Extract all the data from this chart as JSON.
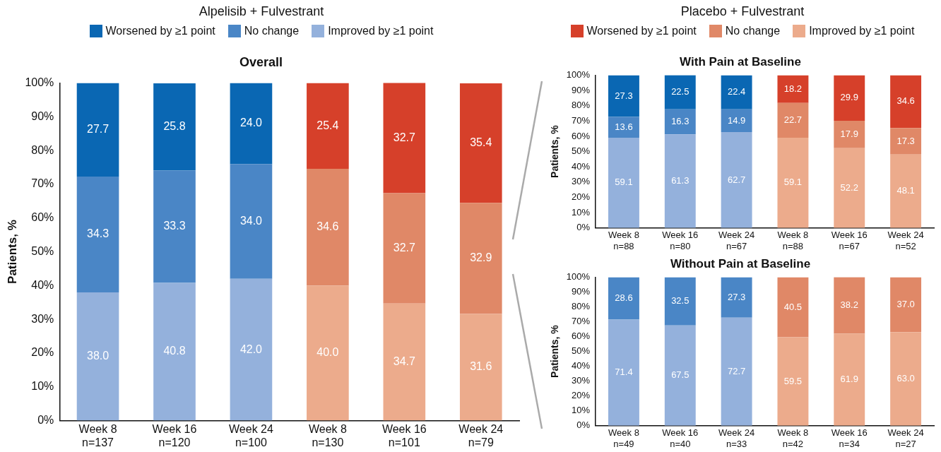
{
  "chart_data": [
    {
      "type": "bar",
      "title": "Overall",
      "ylabel": "Patients, %",
      "stacked": true,
      "legend": "top",
      "grid": false,
      "annotations": [
        "Alpelisib + Fulvestrant",
        "Placebo + Fulvestrant"
      ],
      "categories": [
        "Week 8\nn=137",
        "Week 16\nn=120",
        "Week 24\nn=100",
        "Week 8\nn=130",
        "Week 16\nn=101",
        "Week 24\nn=79"
      ],
      "ylim": [
        0,
        100
      ],
      "yticks": [
        {
          "value": 0,
          "label": "0%"
        },
        {
          "value": 10,
          "label": "10%"
        },
        {
          "value": 20,
          "label": "20%"
        },
        {
          "value": 30,
          "label": "30%"
        },
        {
          "value": 40,
          "label": "40%"
        },
        {
          "value": 50,
          "label": "50%"
        },
        {
          "value": 60,
          "label": "60%"
        },
        {
          "value": 70,
          "label": "70%"
        },
        {
          "value": 80,
          "label": "80%"
        },
        {
          "value": 90,
          "label": "90%"
        },
        {
          "value": 100,
          "label": "100%"
        }
      ],
      "series": [
        {
          "name": "Improved by ≥1 point",
          "color": "#94b1dc",
          "values": [
            38.0,
            40.8,
            42.0,
            null,
            null,
            null
          ],
          "value_labels": [
            "38.0",
            "40.8",
            "42.0",
            null,
            null,
            null
          ]
        },
        {
          "name": "No change",
          "color": "#4a86c6",
          "values": [
            34.3,
            33.3,
            34.0,
            null,
            null,
            null
          ],
          "value_labels": [
            "34.3",
            "33.3",
            "34.0",
            null,
            null,
            null
          ]
        },
        {
          "name": "Worsened by ≥1 point",
          "color": "#0a67b3",
          "values": [
            27.7,
            25.8,
            24.0,
            null,
            null,
            null
          ],
          "value_labels": [
            "27.7",
            "25.8",
            "24.0",
            null,
            null,
            null
          ]
        },
        {
          "name": "Improved by ≥1 point",
          "color": "#ecab8c",
          "values": [
            null,
            null,
            null,
            40.0,
            34.7,
            31.6
          ],
          "value_labels": [
            null,
            null,
            null,
            "40.0",
            "34.7",
            "31.6"
          ]
        },
        {
          "name": "No change",
          "color": "#e08867",
          "values": [
            null,
            null,
            null,
            34.6,
            32.7,
            32.9
          ],
          "value_labels": [
            null,
            null,
            null,
            "34.6",
            "32.7",
            "32.9"
          ]
        },
        {
          "name": "Worsened by ≥1 point",
          "color": "#d6402a",
          "values": [
            null,
            null,
            null,
            25.4,
            32.7,
            35.4
          ],
          "value_labels": [
            null,
            null,
            null,
            "25.4",
            "32.7",
            "35.4"
          ]
        }
      ]
    },
    {
      "type": "bar",
      "title": "With Pain at Baseline",
      "ylabel": "Patients, %",
      "stacked": true,
      "grid": false,
      "categories": [
        "Week 8\nn=88",
        "Week 16\nn=80",
        "Week 24\nn=67",
        "Week 8\nn=88",
        "Week 16\nn=67",
        "Week 24\nn=52"
      ],
      "ylim": [
        0,
        100
      ],
      "yticks": [
        {
          "value": 0,
          "label": "0%"
        },
        {
          "value": 10,
          "label": "10%"
        },
        {
          "value": 20,
          "label": "20%"
        },
        {
          "value": 30,
          "label": "30%"
        },
        {
          "value": 40,
          "label": "40%"
        },
        {
          "value": 50,
          "label": "50%"
        },
        {
          "value": 60,
          "label": "60%"
        },
        {
          "value": 70,
          "label": "70%"
        },
        {
          "value": 80,
          "label": "80%"
        },
        {
          "value": 90,
          "label": "90%"
        },
        {
          "value": 100,
          "label": "100%"
        }
      ],
      "series": [
        {
          "color": "#94b1dc",
          "values": [
            59.1,
            61.3,
            62.7,
            null,
            null,
            null
          ],
          "value_labels": [
            "59.1",
            "61.3",
            "62.7",
            null,
            null,
            null
          ]
        },
        {
          "color": "#4a86c6",
          "values": [
            13.6,
            16.3,
            14.9,
            null,
            null,
            null
          ],
          "value_labels": [
            "13.6",
            "16.3",
            "14.9",
            null,
            null,
            null
          ]
        },
        {
          "color": "#0a67b3",
          "values": [
            27.3,
            22.5,
            22.4,
            null,
            null,
            null
          ],
          "value_labels": [
            "27.3",
            "22.5",
            "22.4",
            null,
            null,
            null
          ]
        },
        {
          "color": "#ecab8c",
          "values": [
            null,
            null,
            null,
            59.1,
            52.2,
            48.1
          ],
          "value_labels": [
            null,
            null,
            null,
            "59.1",
            "52.2",
            "48.1"
          ]
        },
        {
          "color": "#e08867",
          "values": [
            null,
            null,
            null,
            22.7,
            17.9,
            17.3
          ],
          "value_labels": [
            null,
            null,
            null,
            "22.7",
            "17.9",
            "17.3"
          ]
        },
        {
          "color": "#d6402a",
          "values": [
            null,
            null,
            null,
            18.2,
            29.9,
            34.6
          ],
          "value_labels": [
            null,
            null,
            null,
            "18.2",
            "29.9",
            "34.6"
          ]
        }
      ]
    },
    {
      "type": "bar",
      "title": "Without Pain at Baseline",
      "ylabel": "Patients, %",
      "stacked": true,
      "grid": false,
      "categories": [
        "Week 8\nn=49",
        "Week 16\nn=40",
        "Week 24\nn=33",
        "Week 8\nn=42",
        "Week 16\nn=34",
        "Week 24\nn=27"
      ],
      "ylim": [
        0,
        100
      ],
      "yticks": [
        {
          "value": 0,
          "label": "0%"
        },
        {
          "value": 10,
          "label": "10%"
        },
        {
          "value": 20,
          "label": "20%"
        },
        {
          "value": 30,
          "label": "30%"
        },
        {
          "value": 40,
          "label": "40%"
        },
        {
          "value": 50,
          "label": "50%"
        },
        {
          "value": 60,
          "label": "60%"
        },
        {
          "value": 70,
          "label": "70%"
        },
        {
          "value": 80,
          "label": "80%"
        },
        {
          "value": 90,
          "label": "90%"
        },
        {
          "value": 100,
          "label": "100%"
        }
      ],
      "series": [
        {
          "color": "#94b1dc",
          "values": [
            71.4,
            67.5,
            72.7,
            null,
            null,
            null
          ],
          "value_labels": [
            "71.4",
            "67.5",
            "72.7",
            null,
            null,
            null
          ]
        },
        {
          "color": "#4a86c6",
          "values": [
            28.6,
            32.5,
            27.3,
            null,
            null,
            null
          ],
          "value_labels": [
            "28.6",
            "32.5",
            "27.3",
            null,
            null,
            null
          ]
        },
        {
          "color": "#ecab8c",
          "values": [
            null,
            null,
            null,
            59.5,
            61.9,
            63.0
          ],
          "value_labels": [
            null,
            null,
            null,
            "59.5",
            "61.9",
            "63.0"
          ]
        },
        {
          "color": "#e08867",
          "values": [
            null,
            null,
            null,
            40.5,
            38.2,
            37.0
          ],
          "value_labels": [
            null,
            null,
            null,
            "40.5",
            "38.2",
            "37.0"
          ]
        }
      ]
    }
  ]
}
